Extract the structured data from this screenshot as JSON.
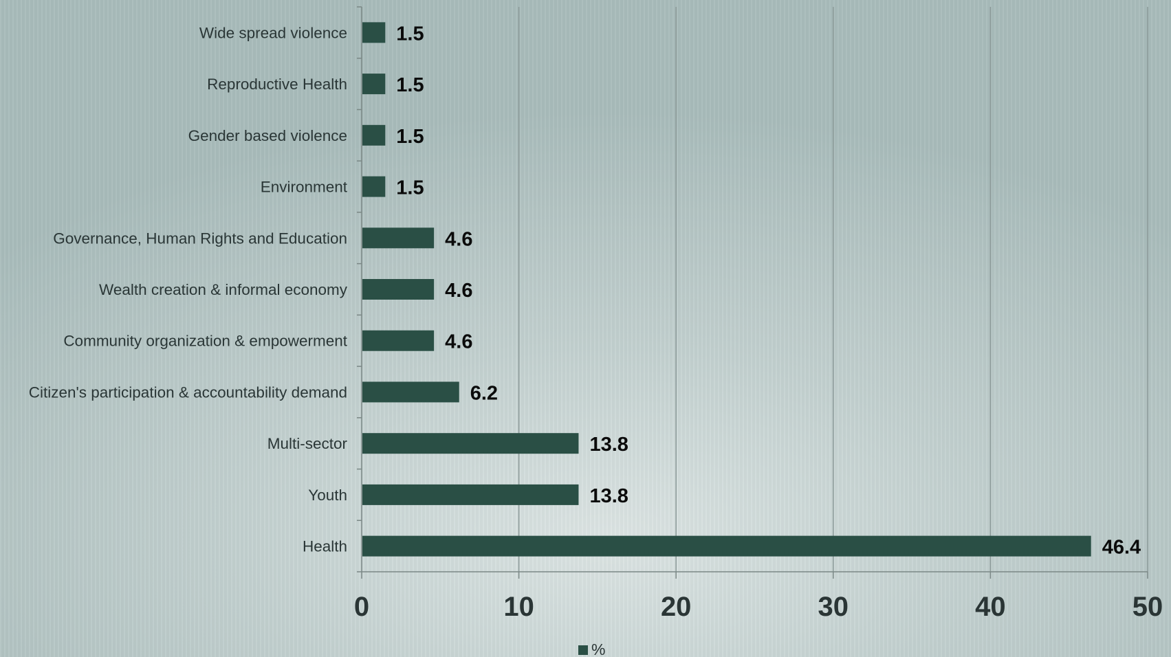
{
  "chart_data": {
    "type": "bar",
    "orientation": "horizontal",
    "categories": [
      "Wide spread violence",
      "Reproductive Health",
      "Gender based violence",
      "Environment",
      "Governance, Human Rights and Education",
      "Wealth creation & informal economy",
      "Community organization & empowerment",
      "Citizen's participation & accountability demand",
      "Multi-sector",
      "Youth",
      "Health"
    ],
    "series": [
      {
        "name": "%",
        "values": [
          1.5,
          1.5,
          1.5,
          1.5,
          4.6,
          4.6,
          4.6,
          6.2,
          13.8,
          13.8,
          46.4
        ],
        "data_labels": [
          "1.5",
          "1.5",
          "1.5",
          "1.5",
          "4.6",
          "4.6",
          "4.6",
          "6.2",
          "13.8",
          "13.8",
          "46.4"
        ]
      }
    ],
    "xlim": [
      0,
      50
    ],
    "x_ticks": [
      0,
      10,
      20,
      30,
      40,
      50
    ],
    "x_tick_labels": [
      "0",
      "10",
      "20",
      "30",
      "40",
      "50"
    ],
    "grid": "vertical",
    "legend": {
      "position": "bottom",
      "entries": [
        "%"
      ]
    },
    "colors": {
      "bar": "#2a4f45",
      "grid": "#8a9897",
      "axis": "#7b8886"
    },
    "title": "",
    "xlabel": "",
    "ylabel": ""
  }
}
